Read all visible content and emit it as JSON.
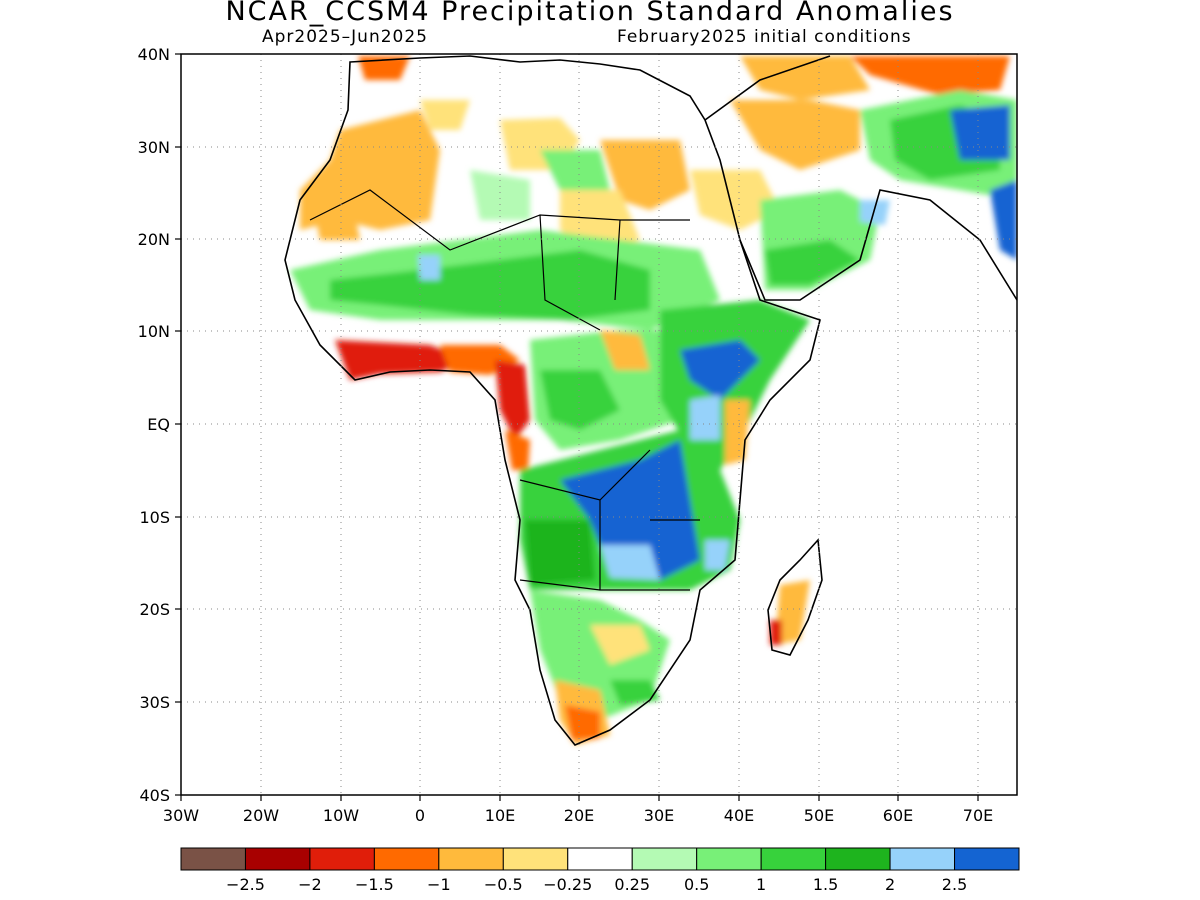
{
  "title": "NCAR_CCSM4 Precipitation Standard Anomalies",
  "subtitle_left": "Apr2025–Jun2025",
  "subtitle_right": "February2025 initial conditions",
  "map": {
    "lon_range": [
      -30,
      75
    ],
    "lat_range": [
      -40,
      40
    ],
    "grid": "dotted",
    "lat_ticks": [
      "40N",
      "30N",
      "20N",
      "10N",
      "EQ",
      "10S",
      "20S",
      "30S",
      "40S"
    ],
    "lon_ticks": [
      "30W",
      "20W",
      "10W",
      "0",
      "10E",
      "20E",
      "30E",
      "40E",
      "50E",
      "60E",
      "70E"
    ],
    "ocean_color": "#ffffff",
    "coast_color": "#000000"
  },
  "colorbar": {
    "colors": [
      "#7a5246",
      "#a80000",
      "#e01e0a",
      "#ff6a00",
      "#ffba3c",
      "#ffe27a",
      "#ffffff",
      "#b4fab4",
      "#78f078",
      "#37d23c",
      "#1eb41e",
      "#96d2fa",
      "#1464d2"
    ],
    "labels": [
      "−2.5",
      "−2",
      "−1.5",
      "−1",
      "−0.5",
      "−0.25",
      "0.25",
      "0.5",
      "1",
      "1.5",
      "2",
      "2.5"
    ]
  }
}
